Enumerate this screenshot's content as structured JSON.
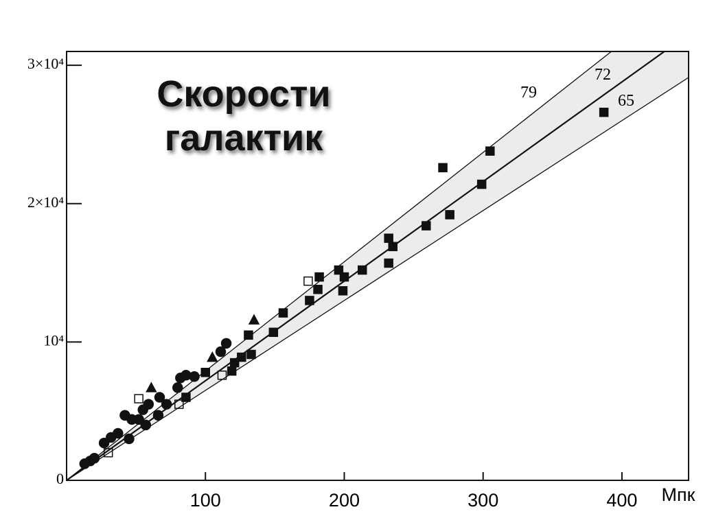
{
  "chart_data": {
    "type": "scatter",
    "title": "Скорости галактик",
    "x_label": "Мпк",
    "xlim": [
      0,
      448
    ],
    "ylim": [
      0,
      31000
    ],
    "xticks": [
      100,
      200,
      300,
      400
    ],
    "yticks": [
      {
        "value": 0,
        "label": "0"
      },
      {
        "value": 10000,
        "label": "10⁴"
      },
      {
        "value": 20000,
        "label": "2×10⁴"
      },
      {
        "value": 30000,
        "label": "3×10⁴"
      }
    ],
    "hubble_lines": [
      79,
      72,
      65
    ],
    "band_color": "#ececec",
    "series": [
      {
        "marker": "square",
        "filled": true,
        "color": "#111",
        "x": [
          387,
          305,
          271,
          299,
          276,
          259,
          232,
          235,
          232,
          213,
          196,
          200,
          182,
          181,
          199,
          175,
          156,
          149,
          131,
          133,
          126,
          121,
          119,
          100,
          86
        ],
        "values": [
          26600,
          23800,
          22600,
          21400,
          19200,
          18400,
          17500,
          16900,
          15700,
          15200,
          15200,
          14700,
          14700,
          13800,
          13700,
          13000,
          12100,
          10700,
          10500,
          9100,
          8900,
          8500,
          7900,
          7800,
          6000
        ]
      },
      {
        "marker": "circle",
        "filled": true,
        "color": "#111",
        "x": [
          115,
          111,
          86,
          82,
          92,
          80,
          67,
          59,
          55,
          52,
          57,
          42,
          47,
          37,
          32,
          27,
          45,
          17,
          13,
          20,
          72,
          66
        ],
        "values": [
          9900,
          9300,
          7600,
          7400,
          7500,
          6700,
          6000,
          5500,
          5100,
          4400,
          4000,
          4700,
          4400,
          3400,
          3100,
          2700,
          3000,
          1400,
          1200,
          1600,
          5500,
          4700
        ]
      },
      {
        "marker": "triangle",
        "filled": true,
        "color": "#111",
        "x": [
          135,
          105,
          61
        ],
        "values": [
          11600,
          8900,
          6700
        ]
      },
      {
        "marker": "square",
        "filled": false,
        "color": "#111",
        "x": [
          174,
          52,
          112,
          30,
          81
        ],
        "values": [
          14400,
          5900,
          7600,
          2000,
          5500
        ]
      }
    ]
  }
}
